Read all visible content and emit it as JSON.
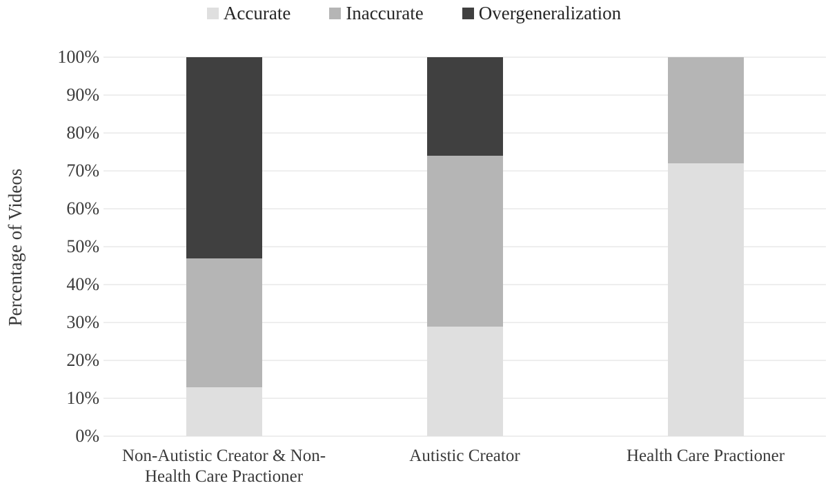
{
  "chart_data": {
    "type": "bar",
    "stacked": true,
    "title": "",
    "xlabel": "",
    "ylabel": "Percentage of Videos",
    "ylim": [
      0,
      100
    ],
    "ytick_step": 10,
    "ytick_suffix": "%",
    "grid": true,
    "legend_position": "top",
    "categories": [
      {
        "label": "Non-Autistic Creator & Non-Health Care Practioner",
        "lines": [
          "Non-Autistic Creator & Non-",
          "Health Care Practioner"
        ]
      },
      {
        "label": "Autistic Creator",
        "lines": [
          "Autistic Creator"
        ]
      },
      {
        "label": "Health Care Practioner",
        "lines": [
          "Health Care Practioner"
        ]
      }
    ],
    "series": [
      {
        "name": "Accurate",
        "color": "#dfdfdf",
        "values": [
          13,
          29,
          72
        ]
      },
      {
        "name": "Inaccurate",
        "color": "#b5b5b5",
        "values": [
          34,
          45,
          28
        ]
      },
      {
        "name": "Overgeneralization",
        "color": "#404040",
        "values": [
          53,
          26,
          0
        ]
      }
    ]
  },
  "style": {
    "gridline_color": "#eeeeee",
    "tick_text_color": "#3a3a3a",
    "legend_text_color": "#262626",
    "background": "#ffffff"
  }
}
